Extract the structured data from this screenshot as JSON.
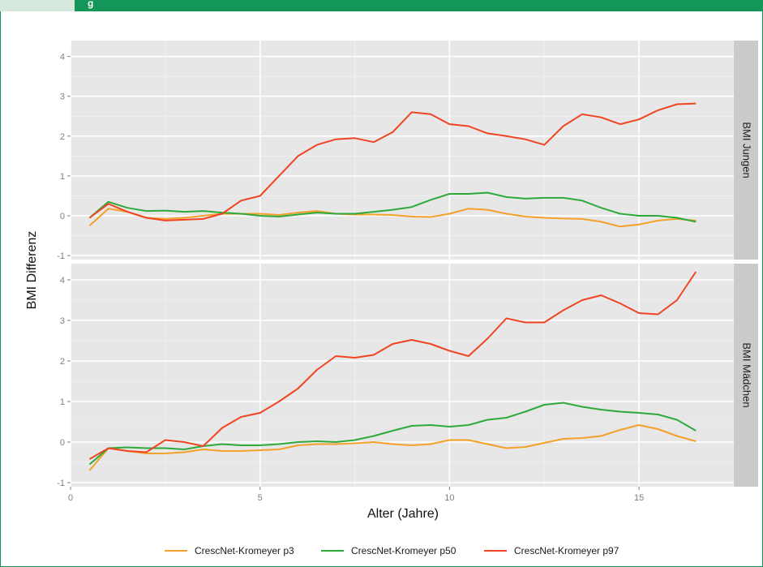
{
  "header": {
    "title_fragment": "g"
  },
  "colors": {
    "frame": "#14955a",
    "panel_bg": "#e7e7e7",
    "strip_bg": "#cbcbcb",
    "p3": "#f3a12a",
    "p50": "#2eaa3c",
    "p97": "#ef4523"
  },
  "chart_data": {
    "type": "line",
    "xlabel": "Alter (Jahre)",
    "ylabel": "BMI Differenz",
    "xlim": [
      0,
      17.5
    ],
    "ylim": [
      -1.1,
      4.4
    ],
    "x_ticks": [
      "0",
      "5",
      "10",
      "15"
    ],
    "y_ticks": [
      "-1",
      "0",
      "1",
      "2",
      "3",
      "4"
    ],
    "legend_position": "bottom",
    "legend": [
      "CrescNet-Kromeyer p3",
      "CrescNet-Kromeyer p50",
      "CrescNet-Kromeyer p97"
    ],
    "panels": [
      {
        "label": "BMI Jungen",
        "series": [
          {
            "name": "CrescNet-Kromeyer p3",
            "color": "#f3a12a",
            "points": [
              [
                0.5,
                -0.25
              ],
              [
                1,
                0.18
              ],
              [
                1.5,
                0.1
              ],
              [
                2,
                -0.05
              ],
              [
                2.5,
                -0.08
              ],
              [
                3,
                -0.05
              ],
              [
                3.5,
                0.0
              ],
              [
                4,
                0.05
              ],
              [
                4.5,
                0.05
              ],
              [
                5,
                0.05
              ],
              [
                5.5,
                0.02
              ],
              [
                6,
                0.08
              ],
              [
                6.5,
                0.12
              ],
              [
                7,
                0.05
              ],
              [
                7.5,
                0.03
              ],
              [
                8,
                0.03
              ],
              [
                8.5,
                0.02
              ],
              [
                9,
                -0.02
              ],
              [
                9.5,
                -0.03
              ],
              [
                10,
                0.05
              ],
              [
                10.5,
                0.18
              ],
              [
                11,
                0.15
              ],
              [
                11.5,
                0.05
              ],
              [
                12,
                -0.02
              ],
              [
                12.5,
                -0.05
              ],
              [
                13,
                -0.07
              ],
              [
                13.5,
                -0.08
              ],
              [
                14,
                -0.15
              ],
              [
                14.5,
                -0.27
              ],
              [
                15,
                -0.22
              ],
              [
                15.5,
                -0.12
              ],
              [
                16,
                -0.08
              ],
              [
                16.5,
                -0.12
              ]
            ]
          },
          {
            "name": "CrescNet-Kromeyer p50",
            "color": "#2eaa3c",
            "points": [
              [
                0.5,
                -0.05
              ],
              [
                1,
                0.35
              ],
              [
                1.5,
                0.2
              ],
              [
                2,
                0.12
              ],
              [
                2.5,
                0.13
              ],
              [
                3,
                0.1
              ],
              [
                3.5,
                0.12
              ],
              [
                4,
                0.08
              ],
              [
                4.5,
                0.05
              ],
              [
                5,
                0.0
              ],
              [
                5.5,
                -0.02
              ],
              [
                6,
                0.03
              ],
              [
                6.5,
                0.08
              ],
              [
                7,
                0.05
              ],
              [
                7.5,
                0.05
              ],
              [
                8,
                0.1
              ],
              [
                8.5,
                0.15
              ],
              [
                9,
                0.22
              ],
              [
                9.5,
                0.4
              ],
              [
                10,
                0.55
              ],
              [
                10.5,
                0.55
              ],
              [
                11,
                0.58
              ],
              [
                11.5,
                0.47
              ],
              [
                12,
                0.43
              ],
              [
                12.5,
                0.45
              ],
              [
                13,
                0.45
              ],
              [
                13.5,
                0.38
              ],
              [
                14,
                0.2
              ],
              [
                14.5,
                0.05
              ],
              [
                15,
                0.0
              ],
              [
                15.5,
                0.0
              ],
              [
                16,
                -0.05
              ],
              [
                16.5,
                -0.15
              ]
            ]
          },
          {
            "name": "CrescNet-Kromeyer p97",
            "color": "#ef4523",
            "points": [
              [
                0.5,
                -0.05
              ],
              [
                1,
                0.3
              ],
              [
                1.5,
                0.1
              ],
              [
                2,
                -0.05
              ],
              [
                2.5,
                -0.12
              ],
              [
                3,
                -0.1
              ],
              [
                3.5,
                -0.08
              ],
              [
                4,
                0.05
              ],
              [
                4.5,
                0.38
              ],
              [
                5,
                0.5
              ],
              [
                5.5,
                1.0
              ],
              [
                6,
                1.5
              ],
              [
                6.5,
                1.78
              ],
              [
                7,
                1.92
              ],
              [
                7.5,
                1.95
              ],
              [
                8,
                1.85
              ],
              [
                8.5,
                2.1
              ],
              [
                9,
                2.6
              ],
              [
                9.5,
                2.55
              ],
              [
                10,
                2.3
              ],
              [
                10.5,
                2.25
              ],
              [
                11,
                2.07
              ],
              [
                11.5,
                2.0
              ],
              [
                12,
                1.92
              ],
              [
                12.5,
                1.78
              ],
              [
                13,
                2.25
              ],
              [
                13.5,
                2.55
              ],
              [
                14,
                2.47
              ],
              [
                14.5,
                2.3
              ],
              [
                15,
                2.42
              ],
              [
                15.5,
                2.65
              ],
              [
                16,
                2.8
              ],
              [
                16.5,
                2.82
              ]
            ]
          }
        ]
      },
      {
        "label": "BMI Mädchen",
        "series": [
          {
            "name": "CrescNet-Kromeyer p3",
            "color": "#f3a12a",
            "points": [
              [
                0.5,
                -0.7
              ],
              [
                1,
                -0.15
              ],
              [
                1.5,
                -0.22
              ],
              [
                2,
                -0.28
              ],
              [
                2.5,
                -0.28
              ],
              [
                3,
                -0.25
              ],
              [
                3.5,
                -0.18
              ],
              [
                4,
                -0.22
              ],
              [
                4.5,
                -0.22
              ],
              [
                5,
                -0.2
              ],
              [
                5.5,
                -0.18
              ],
              [
                6,
                -0.08
              ],
              [
                6.5,
                -0.05
              ],
              [
                7,
                -0.05
              ],
              [
                7.5,
                -0.03
              ],
              [
                8,
                0.0
              ],
              [
                8.5,
                -0.05
              ],
              [
                9,
                -0.08
              ],
              [
                9.5,
                -0.05
              ],
              [
                10,
                0.05
              ],
              [
                10.5,
                0.05
              ],
              [
                11,
                -0.05
              ],
              [
                11.5,
                -0.15
              ],
              [
                12,
                -0.12
              ],
              [
                12.5,
                -0.02
              ],
              [
                13,
                0.08
              ],
              [
                13.5,
                0.1
              ],
              [
                14,
                0.15
              ],
              [
                14.5,
                0.3
              ],
              [
                15,
                0.42
              ],
              [
                15.5,
                0.32
              ],
              [
                16,
                0.15
              ],
              [
                16.5,
                0.02
              ]
            ]
          },
          {
            "name": "CrescNet-Kromeyer p50",
            "color": "#2eaa3c",
            "points": [
              [
                0.5,
                -0.55
              ],
              [
                1,
                -0.15
              ],
              [
                1.5,
                -0.13
              ],
              [
                2,
                -0.15
              ],
              [
                2.5,
                -0.15
              ],
              [
                3,
                -0.18
              ],
              [
                3.5,
                -0.1
              ],
              [
                4,
                -0.05
              ],
              [
                4.5,
                -0.08
              ],
              [
                5,
                -0.08
              ],
              [
                5.5,
                -0.05
              ],
              [
                6,
                0.0
              ],
              [
                6.5,
                0.02
              ],
              [
                7,
                0.0
              ],
              [
                7.5,
                0.05
              ],
              [
                8,
                0.15
              ],
              [
                8.5,
                0.28
              ],
              [
                9,
                0.4
              ],
              [
                9.5,
                0.42
              ],
              [
                10,
                0.38
              ],
              [
                10.5,
                0.42
              ],
              [
                11,
                0.55
              ],
              [
                11.5,
                0.6
              ],
              [
                12,
                0.75
              ],
              [
                12.5,
                0.92
              ],
              [
                13,
                0.97
              ],
              [
                13.5,
                0.87
              ],
              [
                14,
                0.8
              ],
              [
                14.5,
                0.75
              ],
              [
                15,
                0.72
              ],
              [
                15.5,
                0.68
              ],
              [
                16,
                0.55
              ],
              [
                16.5,
                0.28
              ]
            ]
          },
          {
            "name": "CrescNet-Kromeyer p97",
            "color": "#ef4523",
            "points": [
              [
                0.5,
                -0.42
              ],
              [
                1,
                -0.15
              ],
              [
                1.5,
                -0.22
              ],
              [
                2,
                -0.25
              ],
              [
                2.5,
                0.05
              ],
              [
                3,
                0.0
              ],
              [
                3.5,
                -0.1
              ],
              [
                4,
                0.35
              ],
              [
                4.5,
                0.62
              ],
              [
                5,
                0.72
              ],
              [
                5.5,
                1.0
              ],
              [
                6,
                1.32
              ],
              [
                6.5,
                1.78
              ],
              [
                7,
                2.12
              ],
              [
                7.5,
                2.08
              ],
              [
                8,
                2.15
              ],
              [
                8.5,
                2.42
              ],
              [
                9,
                2.52
              ],
              [
                9.5,
                2.42
              ],
              [
                10,
                2.25
              ],
              [
                10.5,
                2.12
              ],
              [
                11,
                2.55
              ],
              [
                11.5,
                3.05
              ],
              [
                12,
                2.95
              ],
              [
                12.5,
                2.95
              ],
              [
                13,
                3.25
              ],
              [
                13.5,
                3.5
              ],
              [
                14,
                3.62
              ],
              [
                14.5,
                3.42
              ],
              [
                15,
                3.18
              ],
              [
                15.5,
                3.15
              ],
              [
                16,
                3.5
              ],
              [
                16.5,
                4.2
              ]
            ]
          }
        ]
      }
    ]
  }
}
